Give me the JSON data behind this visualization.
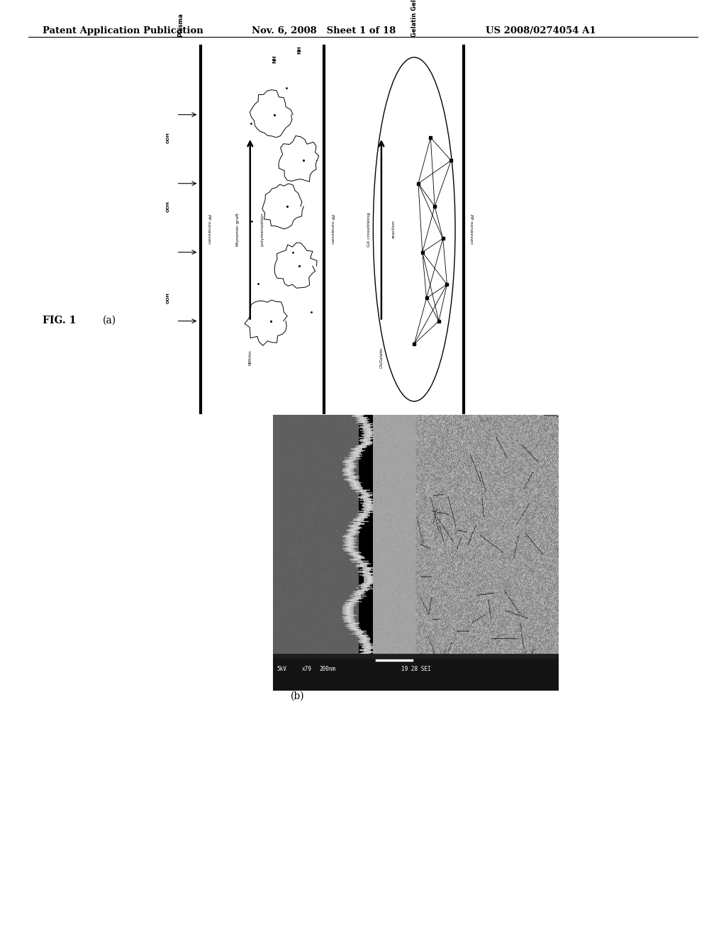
{
  "header_left": "Patent Application Publication",
  "header_mid": "Nov. 6, 2008   Sheet 1 of 18",
  "header_right": "US 2008/0274054 A1",
  "bg_color": "#ffffff",
  "text_color": "#000000"
}
